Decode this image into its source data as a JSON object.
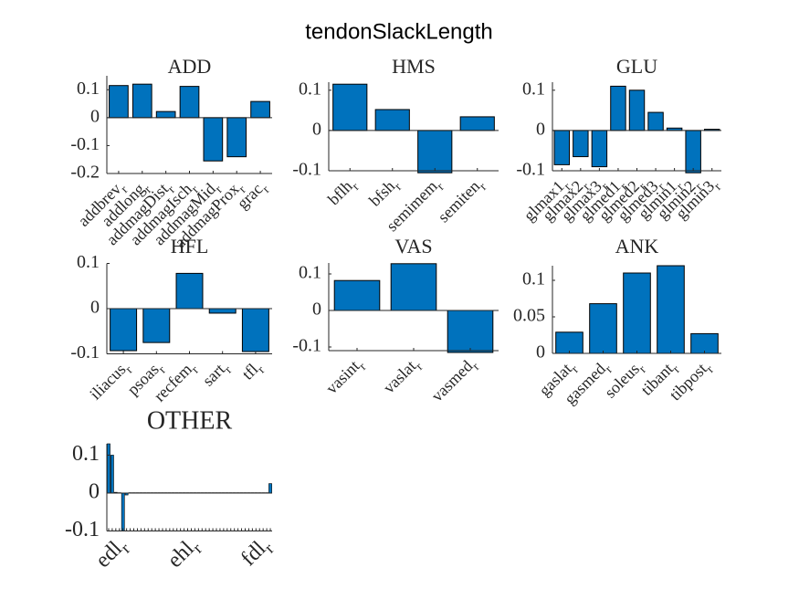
{
  "title": "tendonSlackLength",
  "chart_data": [
    {
      "type": "bar",
      "title": "ADD",
      "color": "#0072bd",
      "category_subscript": "r",
      "categories": [
        "addbrev",
        "addlong",
        "addmagDist",
        "addmagIsch",
        "addmagMid",
        "addmagProx",
        "grac"
      ],
      "values": [
        0.115,
        0.12,
        0.022,
        0.112,
        -0.155,
        -0.14,
        0.058
      ],
      "ylim": [
        -0.2,
        0.15
      ],
      "yticks": [
        -0.2,
        -0.1,
        0,
        0.1
      ]
    },
    {
      "type": "bar",
      "title": "HMS",
      "color": "#0072bd",
      "category_subscript": "r",
      "categories": [
        "bflh",
        "bfsh",
        "semimem",
        "semiten"
      ],
      "values": [
        0.115,
        0.052,
        -0.105,
        0.034
      ],
      "ylim": [
        -0.1,
        0.12
      ],
      "yticks": [
        -0.1,
        0,
        0.1
      ]
    },
    {
      "type": "bar",
      "title": "GLU",
      "color": "#0072bd",
      "category_subscript": "r",
      "categories": [
        "glmax1",
        "glmax2",
        "glmax3",
        "glmed1",
        "glmed2",
        "glmed3",
        "glmin1",
        "glmin2",
        "glmin3"
      ],
      "values": [
        -0.085,
        -0.065,
        -0.09,
        0.11,
        0.1,
        0.045,
        0.006,
        -0.105,
        0.003
      ],
      "ylim": [
        -0.1,
        0.12
      ],
      "yticks": [
        -0.1,
        0,
        0.1
      ]
    },
    {
      "type": "bar",
      "title": "HFL",
      "color": "#0072bd",
      "category_subscript": "r",
      "categories": [
        "iliacus",
        "psoas",
        "recfem",
        "sart",
        "tfl"
      ],
      "values": [
        -0.093,
        -0.075,
        0.078,
        -0.01,
        -0.095
      ],
      "ylim": [
        -0.1,
        0.1
      ],
      "yticks": [
        -0.1,
        0,
        0.1
      ]
    },
    {
      "type": "bar",
      "title": "VAS",
      "color": "#0072bd",
      "category_subscript": "r",
      "categories": [
        "vasint",
        "vaslat",
        "vasmed"
      ],
      "values": [
        0.082,
        0.128,
        -0.115
      ],
      "ylim": [
        -0.11,
        0.13
      ],
      "yticks": [
        -0.1,
        0,
        0.1
      ]
    },
    {
      "type": "bar",
      "title": "ANK",
      "color": "#0072bd",
      "category_subscript": "r",
      "categories": [
        "gaslat",
        "gasmed",
        "soleus",
        "tibant",
        "tibpost"
      ],
      "values": [
        0.029,
        0.068,
        0.11,
        0.12,
        0.027
      ],
      "ylim": [
        0,
        0.12
      ],
      "yticks": [
        0,
        0.05,
        0.1
      ]
    },
    {
      "type": "bar",
      "title": "OTHER",
      "color": "#0072bd",
      "category_subscript": "r",
      "categories": [
        null,
        null,
        null,
        "edl",
        null,
        null,
        null,
        null,
        null,
        null,
        null,
        null,
        null,
        null,
        null,
        null,
        null,
        null,
        null,
        null,
        null,
        null,
        null,
        "ehl",
        null,
        null,
        null,
        null,
        null,
        null,
        null,
        null,
        null,
        null,
        null,
        null,
        null,
        null,
        null,
        null,
        null,
        null,
        null,
        "fdl",
        null,
        null
      ],
      "values": [
        0.13,
        0.1,
        0.002,
        0.001,
        -0.1,
        -0.005,
        0.001,
        0.001,
        0.001,
        0.001,
        0.001,
        0.001,
        0.001,
        0.001,
        0.001,
        0.001,
        0.001,
        0.001,
        0.001,
        0.001,
        0.001,
        0.001,
        0.001,
        0.001,
        0.001,
        0.001,
        0.001,
        0.001,
        0.001,
        0.001,
        0.001,
        0.001,
        0.001,
        0.001,
        0.001,
        0.001,
        0.001,
        0.001,
        0.001,
        0.001,
        0.001,
        0.001,
        0.001,
        0.001,
        0.001,
        0.025
      ],
      "ylim": [
        -0.1,
        0.13
      ],
      "yticks": [
        -0.1,
        0,
        0.1
      ]
    }
  ]
}
